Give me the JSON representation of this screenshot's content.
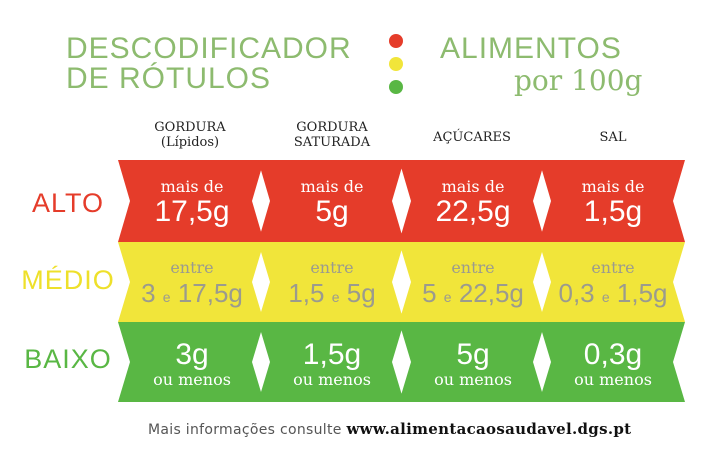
{
  "header": {
    "title_line1": "DESCODIFICADOR",
    "title_line2": "DE RÓTULOS",
    "subtitle_line1": "ALIMENTOS",
    "subtitle_line2": "por 100g",
    "dot_colors": [
      "#e53c2a",
      "#f1e53a",
      "#59b744"
    ]
  },
  "columns": [
    {
      "line1": "GORDURA",
      "line2": "(Lípidos)"
    },
    {
      "line1": "GORDURA",
      "line2": "SATURADA"
    },
    {
      "line1": "AÇÚCARES",
      "line2": ""
    },
    {
      "line1": "SAL",
      "line2": ""
    }
  ],
  "rows": {
    "alto": {
      "label": "ALTO",
      "color": "#e53c2a"
    },
    "medio": {
      "label": "MÉDIO",
      "color": "#f1e53a"
    },
    "baixo": {
      "label": "BAIXO",
      "color": "#59b744"
    }
  },
  "alto_cells": [
    {
      "top": "mais de",
      "value": "17,5g"
    },
    {
      "top": "mais de",
      "value": "5g"
    },
    {
      "top": "mais de",
      "value": "22,5g"
    },
    {
      "top": "mais de",
      "value": "1,5g"
    }
  ],
  "medio_cells": [
    {
      "top": "entre",
      "a": "3",
      "e": "e",
      "b": "17,5g"
    },
    {
      "top": "entre",
      "a": "1,5",
      "e": "e",
      "b": "5g"
    },
    {
      "top": "entre",
      "a": "5",
      "e": "e",
      "b": "22,5g"
    },
    {
      "top": "entre",
      "a": "0,3",
      "e": "e",
      "b": "1,5g"
    }
  ],
  "baixo_cells": [
    {
      "value": "3g",
      "bottom": "ou menos"
    },
    {
      "value": "1,5g",
      "bottom": "ou menos"
    },
    {
      "value": "5g",
      "bottom": "ou menos"
    },
    {
      "value": "0,3g",
      "bottom": "ou menos"
    }
  ],
  "footer": {
    "text": "Mais informações consulte",
    "url": "www.alimentacaosaudavel.dgs.pt"
  }
}
